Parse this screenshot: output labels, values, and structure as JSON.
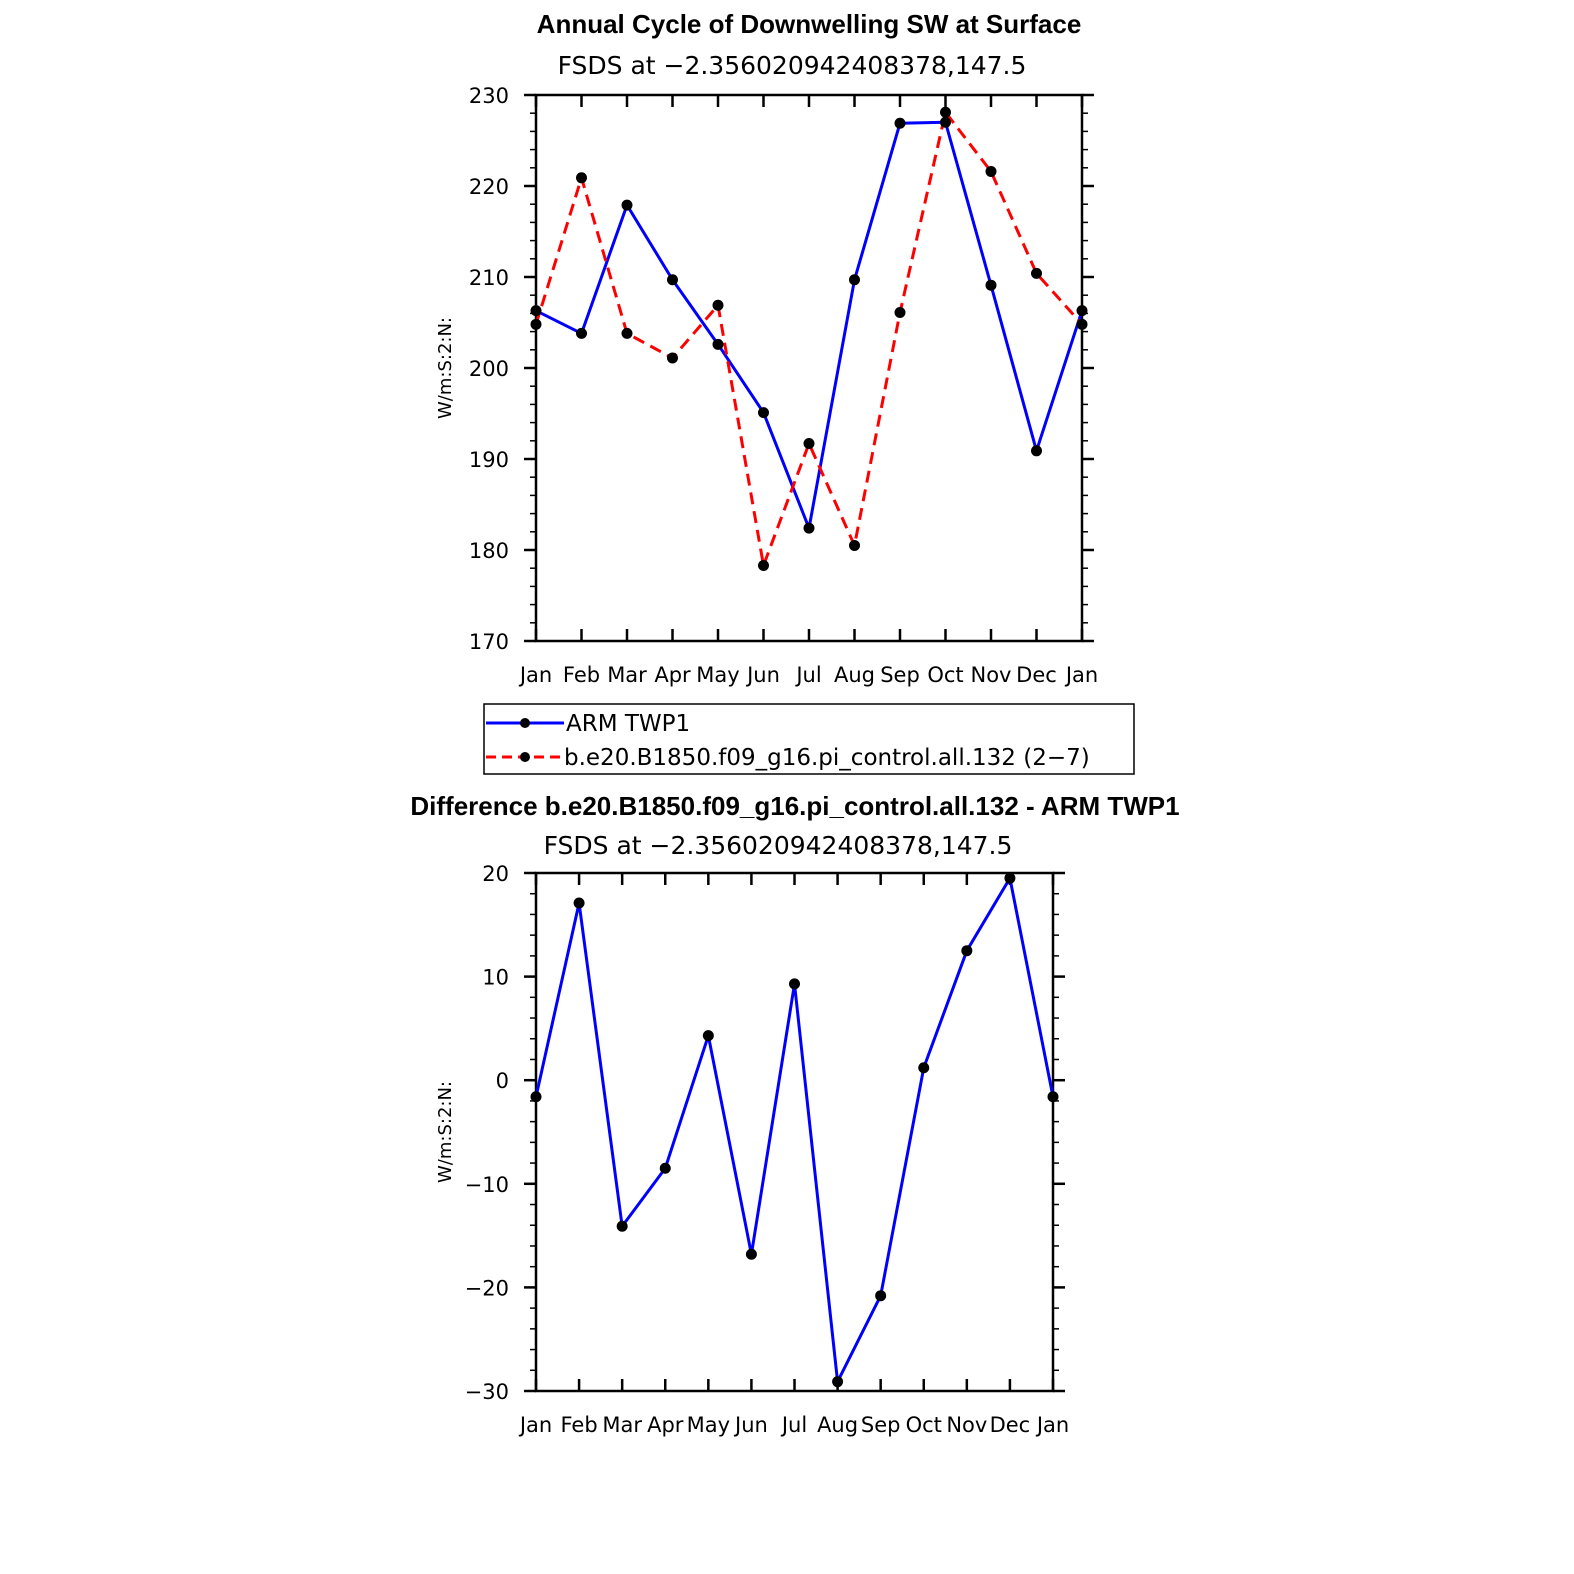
{
  "chart_data": [
    {
      "type": "line",
      "title": "Annual Cycle of Downwelling SW at Surface",
      "subtitle": "FSDS at −2.356020942408378,147.5",
      "ylabel": "W/m:S:2:N:",
      "xlabel": "",
      "categories": [
        "Jan",
        "Feb",
        "Mar",
        "Apr",
        "May",
        "Jun",
        "Jul",
        "Aug",
        "Sep",
        "Oct",
        "Nov",
        "Dec",
        "Jan"
      ],
      "ylim": [
        170,
        230
      ],
      "yticks": [
        170,
        180,
        190,
        200,
        210,
        220,
        230
      ],
      "ytick_labels": [
        "170",
        "180",
        "190",
        "200",
        "210",
        "220",
        "230"
      ],
      "series": [
        {
          "name": "ARM TWP1",
          "color": "#0000ff",
          "dash": "solid",
          "values": [
            206.3,
            203.8,
            217.9,
            209.7,
            202.6,
            195.1,
            182.4,
            209.7,
            226.9,
            227.0,
            209.1,
            190.9,
            206.3
          ]
        },
        {
          "name": "b.e20.B1850.f09_g16.pi_control.all.132 (2−7)",
          "color": "#ff0000",
          "dash": "dashed",
          "values": [
            204.8,
            220.9,
            203.8,
            201.1,
            206.9,
            178.3,
            191.7,
            180.5,
            206.1,
            228.1,
            221.6,
            210.4,
            204.8
          ]
        }
      ],
      "legend": "below"
    },
    {
      "type": "line",
      "title": "Difference b.e20.B1850.f09_g16.pi_control.all.132 - ARM TWP1",
      "subtitle": "FSDS at −2.356020942408378,147.5",
      "ylabel": "W/m:S:2:N:",
      "xlabel": "",
      "categories": [
        "Jan",
        "Feb",
        "Mar",
        "Apr",
        "May",
        "Jun",
        "Jul",
        "Aug",
        "Sep",
        "Oct",
        "Nov",
        "Dec",
        "Jan"
      ],
      "ylim": [
        -30,
        20
      ],
      "yticks": [
        -30,
        -20,
        -10,
        0,
        10,
        20
      ],
      "ytick_labels": [
        "−30",
        "−20",
        "−10",
        "0",
        "10",
        "20"
      ],
      "series": [
        {
          "color": "#0000ff",
          "dash": "solid",
          "values": [
            -1.6,
            17.1,
            -14.1,
            -8.5,
            4.3,
            -16.8,
            9.3,
            -29.1,
            -20.8,
            1.2,
            12.5,
            19.5,
            -1.6
          ]
        }
      ]
    }
  ]
}
